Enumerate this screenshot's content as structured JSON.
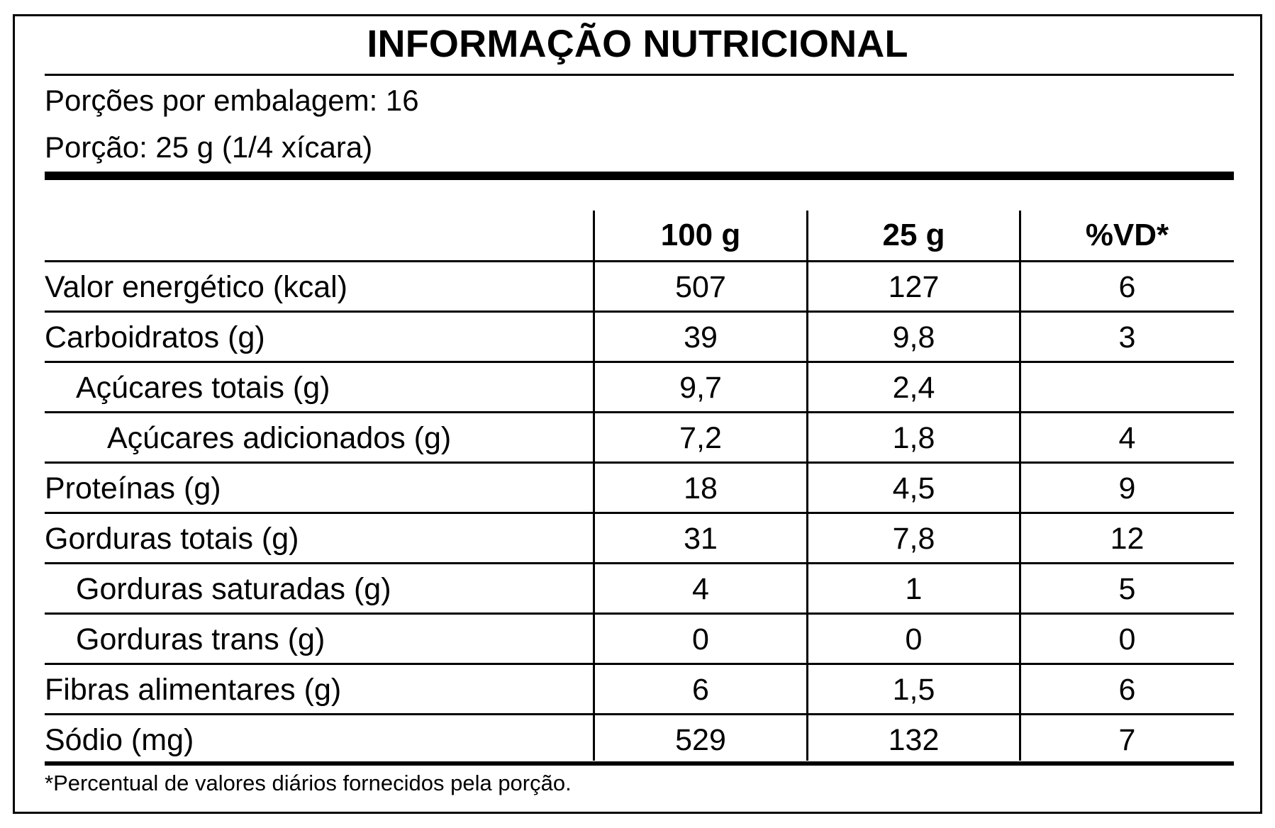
{
  "title": "INFORMAÇÃO NUTRICIONAL",
  "servings_per_package": "Porções por embalagem: 16",
  "serving_size": "Porção: 25 g (1/4 xícara)",
  "columns": [
    "100 g",
    "25 g",
    "%VD*"
  ],
  "rows": [
    {
      "name": "Valor energético (kcal)",
      "indent": 0,
      "per_100g": "507",
      "per_serving": "127",
      "dv": "6"
    },
    {
      "name": "Carboidratos (g)",
      "indent": 0,
      "per_100g": "39",
      "per_serving": "9,8",
      "dv": "3"
    },
    {
      "name": "Açúcares totais (g)",
      "indent": 1,
      "per_100g": "9,7",
      "per_serving": "2,4",
      "dv": ""
    },
    {
      "name": "Açúcares adicionados (g)",
      "indent": 2,
      "per_100g": "7,2",
      "per_serving": "1,8",
      "dv": "4"
    },
    {
      "name": "Proteínas (g)",
      "indent": 0,
      "per_100g": "18",
      "per_serving": "4,5",
      "dv": "9"
    },
    {
      "name": "Gorduras totais (g)",
      "indent": 0,
      "per_100g": "31",
      "per_serving": "7,8",
      "dv": "12"
    },
    {
      "name": "Gorduras saturadas (g)",
      "indent": 1,
      "per_100g": "4",
      "per_serving": "1",
      "dv": "5"
    },
    {
      "name": "Gorduras trans (g)",
      "indent": 1,
      "per_100g": "0",
      "per_serving": "0",
      "dv": "0"
    },
    {
      "name": "Fibras alimentares (g)",
      "indent": 0,
      "per_100g": "6",
      "per_serving": "1,5",
      "dv": "6"
    },
    {
      "name": "Sódio (mg)",
      "indent": 0,
      "per_100g": "529",
      "per_serving": "132",
      "dv": "7"
    }
  ],
  "footnote": "*Percentual de valores diários fornecidos pela porção."
}
